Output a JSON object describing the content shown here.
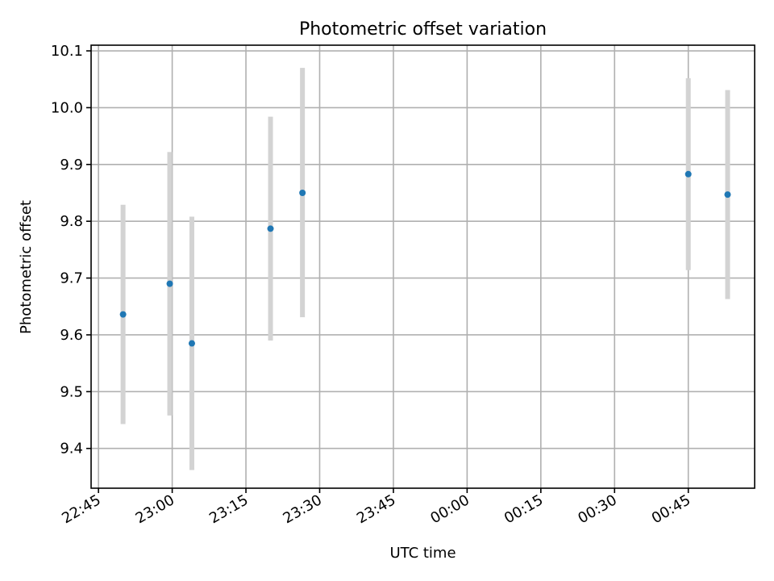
{
  "chart_data": {
    "type": "scatter",
    "title": "Photometric offset variation",
    "xlabel": "UTC time",
    "ylabel": "Photometric offset",
    "x_axis_kind": "time",
    "x_ticks": [
      "22:45",
      "23:00",
      "23:15",
      "23:30",
      "23:45",
      "00:00",
      "00:15",
      "00:30",
      "00:45"
    ],
    "xlim": [
      "22:43:30",
      "00:58:30"
    ],
    "y_ticks": [
      "9.4",
      "9.5",
      "9.6",
      "9.7",
      "9.8",
      "9.9",
      "10.0",
      "10.1"
    ],
    "ylim": [
      9.33,
      10.11
    ],
    "grid": true,
    "series": [
      {
        "marker_color": "#1f77b4",
        "errorbar_color": "#d3d3d3",
        "points": [
          {
            "x": "22:50",
            "y": 9.636,
            "yerr_low": 9.443,
            "yerr_high": 9.829
          },
          {
            "x": "22:59:30",
            "y": 9.69,
            "yerr_low": 9.458,
            "yerr_high": 9.922
          },
          {
            "x": "23:04",
            "y": 9.585,
            "yerr_low": 9.362,
            "yerr_high": 9.808
          },
          {
            "x": "23:20",
            "y": 9.787,
            "yerr_low": 9.59,
            "yerr_high": 9.984
          },
          {
            "x": "23:26:30",
            "y": 9.85,
            "yerr_low": 9.631,
            "yerr_high": 10.07
          },
          {
            "x": "00:45",
            "y": 9.883,
            "yerr_low": 9.714,
            "yerr_high": 10.052
          },
          {
            "x": "00:53",
            "y": 9.847,
            "yerr_low": 9.663,
            "yerr_high": 10.031
          }
        ]
      }
    ]
  }
}
